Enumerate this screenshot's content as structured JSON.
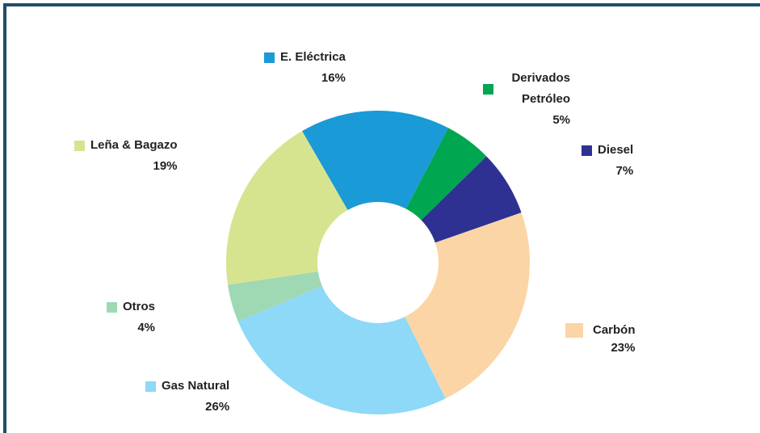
{
  "chart_data": {
    "type": "donut",
    "categories": [
      "E. Eléctrica",
      "Derivados Petróleo",
      "Diesel",
      "Carbón",
      "Gas Natural",
      "Otros",
      "Leña & Bagazo"
    ],
    "values": [
      16,
      5,
      7,
      23,
      26,
      4,
      19
    ],
    "value_labels": [
      "16%",
      "5%",
      "7%",
      "23%",
      "26%",
      "4%",
      "19%"
    ],
    "colors": [
      "#1a9ad6",
      "#00a650",
      "#2e3192",
      "#fbd5a5",
      "#8ed8f8",
      "#9fd9b4",
      "#d7e48f"
    ]
  }
}
